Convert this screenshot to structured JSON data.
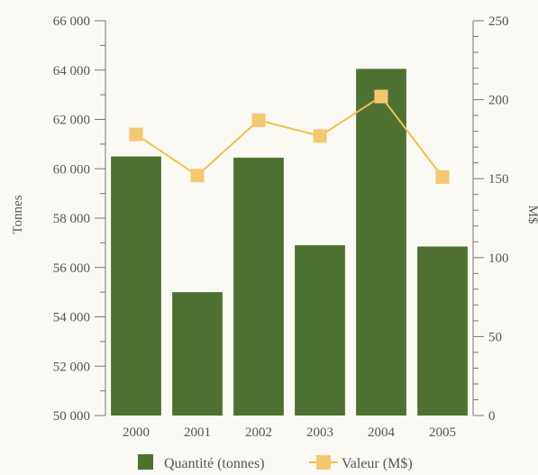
{
  "chart_data": {
    "type": "bar",
    "categories": [
      "2000",
      "2001",
      "2002",
      "2003",
      "2004",
      "2005"
    ],
    "series": [
      {
        "name": "Quantité (tonnes)",
        "type": "bar",
        "axis": "left",
        "values": [
          60500,
          55000,
          60450,
          56900,
          64050,
          56850
        ]
      },
      {
        "name": "Valeur (M$)",
        "type": "line",
        "axis": "right",
        "values": [
          178,
          152,
          187,
          177,
          202,
          151
        ]
      }
    ],
    "title": "",
    "ylabel": "Tonnes",
    "y2label": "M$",
    "ylim": [
      50000,
      66000
    ],
    "y2lim": [
      0,
      250
    ],
    "yticks": [
      "50 000",
      "52 000",
      "54 000",
      "56 000",
      "58 000",
      "60 000",
      "62 000",
      "64 000",
      "66 000"
    ],
    "y2ticks": [
      "0",
      "50",
      "100",
      "150",
      "200",
      "250"
    ],
    "legend": "bottom",
    "grid": false,
    "colors": {
      "bar": "#4e7132",
      "line": "#f2bf4a",
      "marker": "#f4c871",
      "axis": "#777777"
    }
  }
}
